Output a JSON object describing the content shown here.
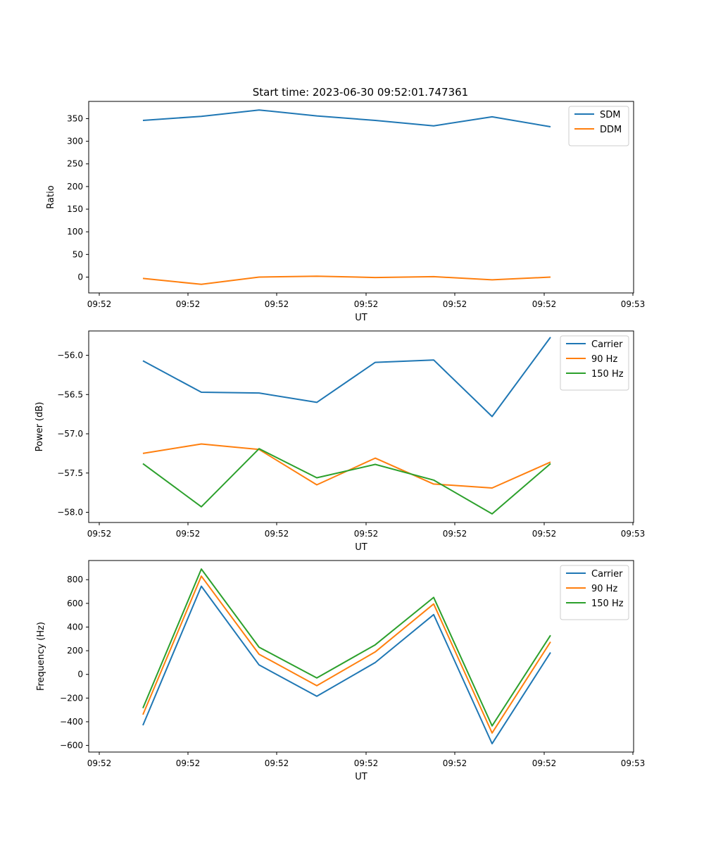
{
  "figure": {
    "title": "Start time: 2023-06-30 09:52:01.747361"
  },
  "chart_data": [
    {
      "type": "line",
      "title": "",
      "xlabel": "UT",
      "ylabel": "Ratio",
      "x_ticks": [
        "09:52",
        "09:52",
        "09:52",
        "09:52",
        "09:52",
        "09:52",
        "09:53"
      ],
      "y_ticks": [
        "0",
        "50",
        "100",
        "150",
        "200",
        "250",
        "300",
        "350"
      ],
      "ylim": [
        -35,
        388
      ],
      "legend_position": "top-right",
      "grid": false,
      "series": [
        {
          "name": "SDM",
          "color": "#1f77b4",
          "values": [
            346,
            355,
            369,
            356,
            346,
            334,
            354,
            332
          ]
        },
        {
          "name": "DDM",
          "color": "#ff7f0e",
          "values": [
            -3,
            -16,
            0,
            2,
            -1,
            1,
            -6,
            0
          ]
        }
      ]
    },
    {
      "type": "line",
      "title": "",
      "xlabel": "UT",
      "ylabel": "Power (dB)",
      "x_ticks": [
        "09:52",
        "09:52",
        "09:52",
        "09:52",
        "09:52",
        "09:52",
        "09:53"
      ],
      "y_ticks": [
        "−58.0",
        "−57.5",
        "−57.0",
        "−56.5",
        "−56.0"
      ],
      "ylim": [
        -58.13,
        -55.69
      ],
      "legend_position": "top-right",
      "grid": false,
      "series": [
        {
          "name": "Carrier",
          "color": "#1f77b4",
          "values": [
            -56.07,
            -56.47,
            -56.48,
            -56.6,
            -56.09,
            -56.06,
            -56.78,
            -55.77
          ]
        },
        {
          "name": "90 Hz",
          "color": "#ff7f0e",
          "values": [
            -57.25,
            -57.13,
            -57.2,
            -57.65,
            -57.31,
            -57.64,
            -57.69,
            -57.36
          ]
        },
        {
          "name": "150 Hz",
          "color": "#2ca02c",
          "values": [
            -57.38,
            -57.93,
            -57.19,
            -57.56,
            -57.39,
            -57.59,
            -58.02,
            -57.38
          ]
        }
      ]
    },
    {
      "type": "line",
      "title": "",
      "xlabel": "UT",
      "ylabel": "Frequency (Hz)",
      "x_ticks": [
        "09:52",
        "09:52",
        "09:52",
        "09:52",
        "09:52",
        "09:52",
        "09:53"
      ],
      "y_ticks": [
        "−600",
        "−400",
        "−200",
        "0",
        "200",
        "400",
        "600",
        "800"
      ],
      "ylim": [
        -656,
        962
      ],
      "legend_position": "top-right",
      "grid": false,
      "series": [
        {
          "name": "Carrier",
          "color": "#1f77b4",
          "values": [
            -430,
            745,
            80,
            -185,
            100,
            505,
            -585,
            185
          ]
        },
        {
          "name": "90 Hz",
          "color": "#ff7f0e",
          "values": [
            -340,
            830,
            170,
            -95,
            190,
            595,
            -495,
            275
          ]
        },
        {
          "name": "150 Hz",
          "color": "#2ca02c",
          "values": [
            -285,
            890,
            230,
            -30,
            250,
            650,
            -435,
            330
          ]
        }
      ]
    }
  ]
}
